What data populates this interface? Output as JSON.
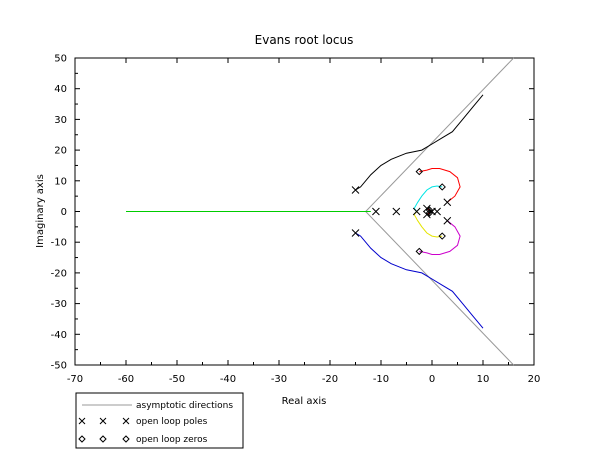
{
  "chart_data": {
    "type": "line",
    "title": "Evans root locus",
    "xlabel": "Real axis",
    "ylabel": "Imaginary axis",
    "xlim": [
      -70,
      20
    ],
    "ylim": [
      -50,
      50
    ],
    "x_ticks": [
      "-70",
      "-60",
      "-50",
      "-40",
      "-30",
      "-20",
      "-10",
      "0",
      "10",
      "20"
    ],
    "y_ticks": [
      "50",
      "40",
      "30",
      "20",
      "10",
      "0",
      "-10",
      "-20",
      "-30",
      "-40",
      "-50"
    ],
    "grid": false,
    "legend_position": "bottom-left",
    "legend": {
      "asymptotes": "asymptotic directions",
      "poles": "open loop poles",
      "zeros": "open loop zeros"
    },
    "asymptote_center": [
      -13,
      0
    ],
    "asymptotes": [
      {
        "from": [
          -13,
          0
        ],
        "to": [
          16,
          50
        ]
      },
      {
        "from": [
          -13,
          0
        ],
        "to": [
          16,
          -50
        ]
      }
    ],
    "poles": [
      [
        -15,
        7
      ],
      [
        -15,
        -7
      ],
      [
        -11,
        0
      ],
      [
        -7,
        0
      ],
      [
        -3,
        0
      ],
      [
        -1,
        1
      ],
      [
        -1,
        -1
      ],
      [
        0,
        0
      ],
      [
        1,
        0
      ],
      [
        3,
        3
      ],
      [
        3,
        -3
      ]
    ],
    "zeros": [
      [
        -2.5,
        13
      ],
      [
        -2.5,
        -13
      ],
      [
        2,
        8
      ],
      [
        2,
        -8
      ],
      [
        -0.5,
        0.5
      ],
      [
        -0.5,
        -0.5
      ]
    ],
    "series": [
      {
        "color": "#00cc00",
        "points": [
          [
            -60,
            0
          ],
          [
            -12,
            0
          ]
        ]
      },
      {
        "color": "#000000",
        "points": [
          [
            -15,
            7
          ],
          [
            -14,
            8
          ],
          [
            -12,
            12
          ],
          [
            -10,
            15
          ],
          [
            -8,
            17
          ],
          [
            -5,
            19
          ],
          [
            -2,
            20
          ],
          [
            0,
            22
          ],
          [
            2,
            24
          ],
          [
            4,
            26
          ],
          [
            6,
            30
          ],
          [
            8,
            34
          ],
          [
            10,
            38
          ]
        ]
      },
      {
        "color": "#0000cc",
        "points": [
          [
            -15,
            -7
          ],
          [
            -14,
            -8
          ],
          [
            -12,
            -12
          ],
          [
            -10,
            -15
          ],
          [
            -8,
            -17
          ],
          [
            -5,
            -19
          ],
          [
            -2,
            -20
          ],
          [
            0,
            -22
          ],
          [
            2,
            -24
          ],
          [
            4,
            -26
          ],
          [
            6,
            -30
          ],
          [
            8,
            -34
          ],
          [
            10,
            -38
          ]
        ]
      },
      {
        "color": "#ff0000",
        "points": [
          [
            3,
            3
          ],
          [
            4.5,
            5
          ],
          [
            5.5,
            8
          ],
          [
            5,
            11
          ],
          [
            3.5,
            13
          ],
          [
            1.5,
            14
          ],
          [
            0,
            14
          ],
          [
            -1,
            13.5
          ],
          [
            -2.5,
            13
          ]
        ]
      },
      {
        "color": "#cc00cc",
        "points": [
          [
            3,
            -3
          ],
          [
            4.5,
            -5
          ],
          [
            5.5,
            -8
          ],
          [
            5,
            -11
          ],
          [
            3.5,
            -13
          ],
          [
            1.5,
            -14
          ],
          [
            0,
            -14
          ],
          [
            -1,
            -13.5
          ],
          [
            -2.5,
            -13
          ]
        ]
      },
      {
        "color": "#00e5e5",
        "points": [
          [
            -3,
            0
          ],
          [
            -3.5,
            1
          ],
          [
            -2.8,
            3
          ],
          [
            -2,
            5
          ],
          [
            -1,
            7
          ],
          [
            0,
            8
          ],
          [
            1,
            8.3
          ],
          [
            2,
            8
          ]
        ]
      },
      {
        "color": "#e5e500",
        "points": [
          [
            -3,
            0
          ],
          [
            -3.5,
            -1
          ],
          [
            -2.8,
            -3
          ],
          [
            -2,
            -5
          ],
          [
            -1,
            -7
          ],
          [
            0,
            -8
          ],
          [
            1,
            -8.3
          ],
          [
            2,
            -8
          ]
        ]
      },
      {
        "color": "#ff0000",
        "points": [
          [
            -1,
            1
          ],
          [
            -0.7,
            0.8
          ],
          [
            -0.5,
            0.5
          ]
        ]
      },
      {
        "color": "#ff0000",
        "points": [
          [
            -1,
            -1
          ],
          [
            -0.7,
            -0.8
          ],
          [
            -0.5,
            -0.5
          ]
        ]
      }
    ]
  }
}
